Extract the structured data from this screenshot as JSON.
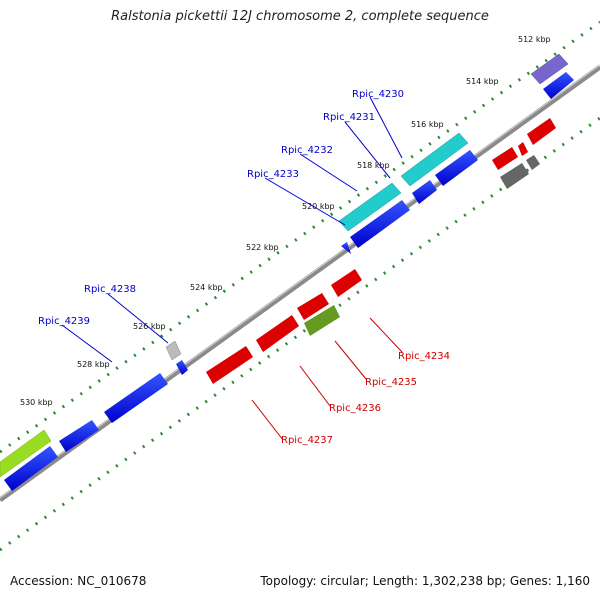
{
  "title": "Ralstonia pickettii 12J chromosome 2, complete sequence",
  "footer": {
    "accession": "Accession: NC_010678",
    "summary": "Topology: circular; Length: 1,302,238 bp; Genes: 1,160"
  },
  "colors": {
    "backbone": "#8a8a8a",
    "scale_dots": "#2e8b2e",
    "forward_cds": "#0000dd",
    "reverse_cds": "#dd0000",
    "label_forward": "#0000cc",
    "label_reverse": "#cc0000",
    "rna_cyan": "#22cccc",
    "purple": "#7766cc",
    "olive": "#669922",
    "lime": "#99dd22",
    "gray": "#888888"
  },
  "scale_labels": [
    "512 kbp",
    "514 kbp",
    "516 kbp",
    "518 kbp",
    "520 kbp",
    "522 kbp",
    "524 kbp",
    "526 kbp",
    "528 kbp",
    "530 kbp"
  ],
  "gene_labels": {
    "forward": [
      "Rpic_4230",
      "Rpic_4231",
      "Rpic_4232",
      "Rpic_4233",
      "Rpic_4238",
      "Rpic_4239"
    ],
    "reverse": [
      "Rpic_4234",
      "Rpic_4235",
      "Rpic_4236",
      "Rpic_4237"
    ]
  }
}
